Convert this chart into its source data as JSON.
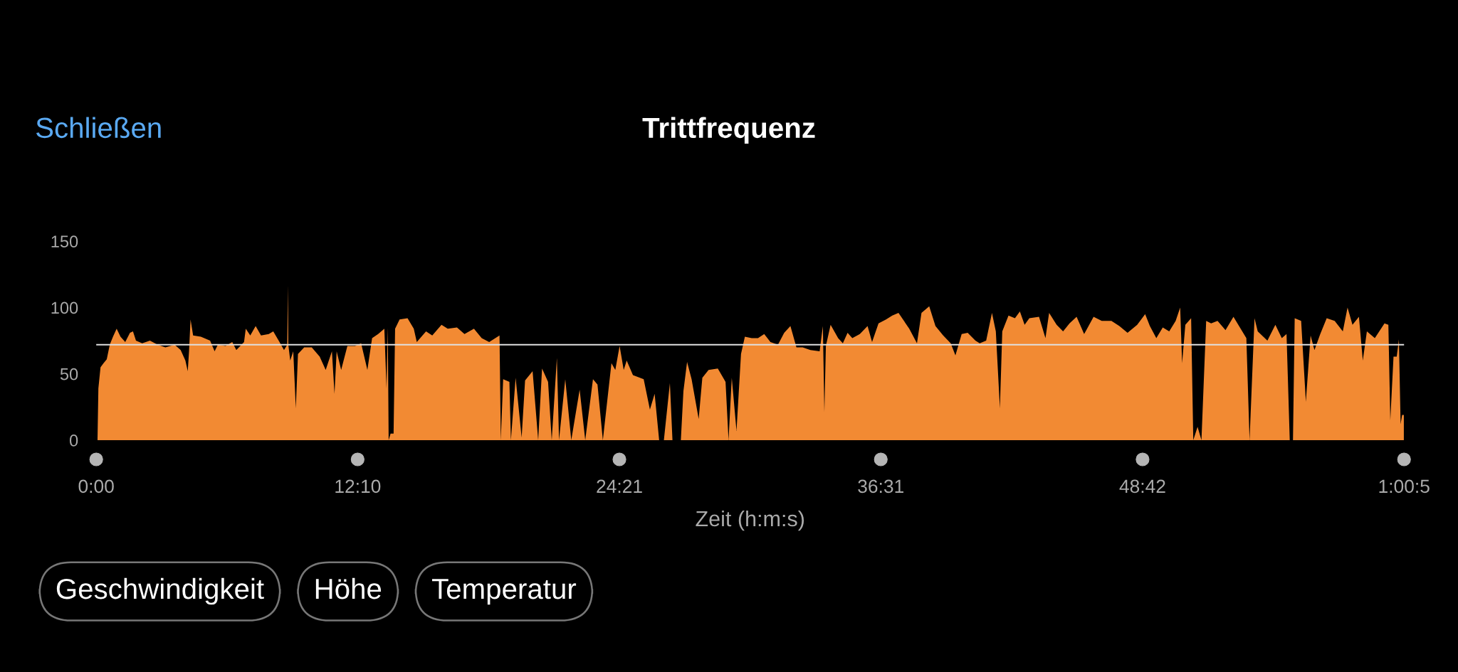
{
  "chart_data": {
    "type": "area",
    "title": "Trittfrequenz",
    "xlabel": "Zeit (h:m:s)",
    "annotations": [
      "Schließen",
      "Geschwindigkeit",
      "Höhe",
      "Temperatur"
    ],
    "xlim": [
      0,
      60.87
    ],
    "ylim": [
      0,
      150
    ],
    "yticks": [
      0,
      50,
      100,
      150
    ],
    "xticks": [
      {
        "value": 0,
        "label": "0:00"
      },
      {
        "value": 12.1667,
        "label": "12:10"
      },
      {
        "value": 24.35,
        "label": "24:21"
      },
      {
        "value": 36.5167,
        "label": "36:31"
      },
      {
        "value": 48.7,
        "label": "48:42"
      },
      {
        "value": 60.87,
        "label": "1:00:5"
      }
    ],
    "grid": false,
    "ref_lines": [
      {
        "axis": "y",
        "value": 72,
        "color": "#e0e0e0"
      }
    ],
    "series": [
      {
        "color": "#f28a33",
        "x": [
          0,
          0.06,
          0.1,
          0.2,
          0.34,
          0.49,
          0.63,
          0.78,
          0.95,
          1.13,
          1.35,
          1.57,
          1.71,
          1.85,
          2.14,
          2.5,
          2.86,
          3.22,
          3.65,
          3.93,
          4.15,
          4.26,
          4.32,
          4.39,
          4.51,
          4.87,
          5.3,
          5.51,
          5.66,
          6.02,
          6.33,
          6.52,
          6.88,
          6.96,
          7.17,
          7.42,
          7.67,
          8.03,
          8.24,
          8.53,
          8.74,
          8.89,
          8.92,
          8.94,
          9.03,
          9.17,
          9.29,
          9.39,
          9.68,
          10.03,
          10.4,
          10.68,
          10.97,
          11.09,
          11.19,
          11.4,
          11.69,
          12.05,
          12.33,
          12.62,
          12.84,
          13.12,
          13.41,
          13.51,
          13.57,
          13.61,
          13.7,
          13.84,
          13.91,
          14.12,
          14.49,
          14.78,
          14.92,
          15.35,
          15.64,
          16.07,
          16.36,
          16.79,
          17.14,
          17.58,
          17.94,
          18.29,
          18.77,
          18.83,
          18.94,
          19.23,
          19.3,
          19.52,
          19.8,
          19.96,
          20.31,
          20.57,
          20.75,
          21.03,
          21.2,
          21.44,
          21.54,
          21.83,
          22.11,
          22.5,
          22.76,
          23.12,
          23.33,
          23.58,
          23.98,
          24.16,
          24.36,
          24.55,
          24.69,
          24.98,
          25.48,
          25.77,
          25.99,
          26.2,
          26.42,
          26.7,
          26.82,
          27.21,
          27.33,
          27.5,
          27.71,
          28.04,
          28.21,
          28.5,
          28.93,
          29.29,
          29.43,
          29.58,
          29.8,
          30.01,
          30.19,
          30.51,
          30.8,
          31.09,
          31.38,
          31.73,
          32.02,
          32.31,
          32.59,
          32.88,
          33.24,
          33.67,
          33.82,
          33.89,
          33.96,
          34.18,
          34.53,
          34.75,
          34.97,
          35.19,
          35.54,
          35.9,
          36.11,
          36.41,
          36.76,
          37.05,
          37.34,
          37.55,
          37.84,
          38.2,
          38.41,
          38.77,
          39.06,
          39.42,
          39.77,
          39.99,
          40.28,
          40.56,
          40.92,
          41.12,
          41.42,
          41.69,
          41.87,
          42.06,
          42.17,
          42.46,
          42.76,
          42.99,
          43.21,
          43.43,
          43.88,
          44.18,
          44.35,
          44.7,
          45.0,
          45.3,
          45.63,
          45.98,
          46.42,
          46.8,
          47.25,
          47.62,
          48.0,
          48.45,
          48.82,
          49.04,
          49.34,
          49.64,
          49.94,
          50.24,
          50.45,
          50.54,
          50.69,
          50.96,
          51.06,
          51.26,
          51.44,
          51.66,
          51.89,
          52.19,
          52.56,
          52.93,
          53.23,
          53.53,
          53.68,
          53.91,
          54.06,
          54.51,
          54.88,
          55.18,
          55.4,
          55.55,
          55.7,
          55.78,
          56.08,
          56.3,
          56.52,
          56.7,
          56.97,
          57.27,
          57.64,
          58.02,
          58.24,
          58.47,
          58.77,
          58.95,
          59.14,
          59.51,
          59.96,
          60.14,
          60.23,
          60.38,
          60.53,
          60.63,
          60.71,
          60.78,
          60.86
        ],
        "values": [
          0,
          0,
          39,
          55,
          58,
          61,
          72,
          78,
          84,
          78,
          74,
          81,
          82,
          75,
          73,
          75,
          72,
          70,
          72,
          68,
          60,
          52,
          67,
          91,
          79,
          78,
          75,
          67,
          72,
          71,
          74,
          68,
          74,
          84,
          79,
          86,
          79,
          80,
          82,
          74,
          68,
          72,
          117,
          72,
          60,
          67,
          24,
          65,
          70,
          70,
          63,
          53,
          67,
          35,
          67,
          53,
          71,
          71,
          73,
          53,
          77,
          80,
          84,
          39,
          85,
          0,
          5,
          5,
          84,
          91,
          92,
          84,
          74,
          82,
          79,
          87,
          84,
          85,
          80,
          84,
          77,
          74,
          79,
          0,
          46,
          44,
          0,
          47,
          2,
          45,
          52,
          0,
          54,
          44,
          0,
          62,
          0,
          46,
          0,
          38,
          0,
          46,
          42,
          0,
          58,
          53,
          71,
          53,
          60,
          49,
          46,
          23,
          35,
          0,
          0,
          43,
          0,
          0,
          37,
          59,
          46,
          16,
          47,
          53,
          54,
          44,
          0,
          47,
          7,
          65,
          78,
          77,
          77,
          80,
          74,
          72,
          81,
          86,
          70,
          70,
          68,
          67,
          86,
          21,
          71,
          87,
          77,
          73,
          81,
          77,
          80,
          86,
          74,
          88,
          91,
          94,
          96,
          91,
          84,
          73,
          96,
          101,
          86,
          79,
          73,
          64,
          80,
          81,
          75,
          73,
          75,
          96,
          82,
          24,
          82,
          94,
          92,
          97,
          87,
          92,
          93,
          77,
          96,
          87,
          82,
          88,
          93,
          80,
          93,
          90,
          90,
          86,
          81,
          87,
          95,
          86,
          77,
          85,
          82,
          90,
          100,
          58,
          87,
          92,
          0,
          10,
          0,
          90,
          88,
          90,
          83,
          93,
          85,
          77,
          0,
          92,
          82,
          75,
          87,
          77,
          80,
          0,
          0,
          92,
          90,
          29,
          79,
          68,
          80,
          92,
          90,
          82,
          100,
          87,
          93,
          60,
          82,
          77,
          88,
          87,
          15,
          63,
          63,
          76,
          12,
          19,
          19
        ]
      }
    ]
  }
}
